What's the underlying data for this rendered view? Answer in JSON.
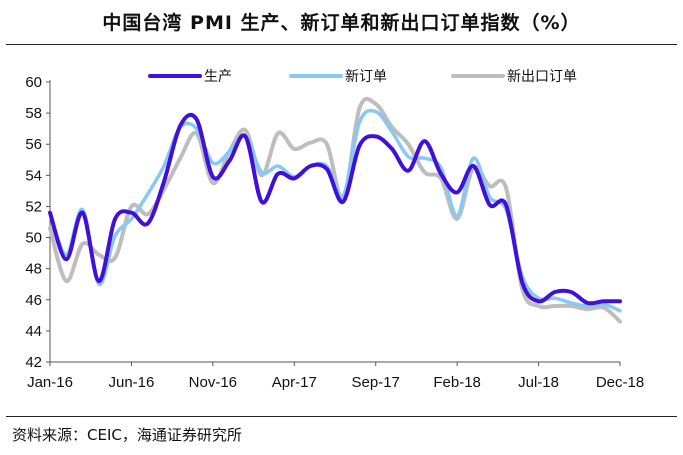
{
  "title": "中国台湾 PMI 生产、新订单和新出口订单指数（%）",
  "source": "资料来源：CEIC，海通证券研究所",
  "chart_data": {
    "type": "line",
    "x": [
      "2016-01",
      "2016-02",
      "2016-03",
      "2016-04",
      "2016-05",
      "2016-06",
      "2016-07",
      "2016-08",
      "2016-09",
      "2016-10",
      "2016-11",
      "2016-12",
      "2017-01",
      "2017-02",
      "2017-03",
      "2017-04",
      "2017-05",
      "2017-06",
      "2017-07",
      "2017-08",
      "2017-09",
      "2017-10",
      "2017-11",
      "2017-12",
      "2018-01",
      "2018-02",
      "2018-03",
      "2018-04",
      "2018-05",
      "2018-06",
      "2018-07",
      "2018-08",
      "2018-09",
      "2018-10",
      "2018-11",
      "2018-12"
    ],
    "xticks": [
      "Jan-16",
      "Jun-16",
      "Nov-16",
      "Apr-17",
      "Sep-17",
      "Feb-18",
      "Jul-18",
      "Dec-18"
    ],
    "ylim": [
      42,
      60
    ],
    "yticks": [
      42,
      44,
      46,
      48,
      50,
      52,
      54,
      56,
      58,
      60
    ],
    "legend_position": "top",
    "series": [
      {
        "name": "生产",
        "color": "#4010d8",
        "values": [
          51.6,
          48.6,
          51.6,
          47.2,
          51.2,
          51.6,
          50.9,
          53.6,
          57.2,
          57.6,
          53.9,
          54.9,
          56.5,
          52.3,
          54.1,
          53.8,
          54.6,
          54.4,
          52.3,
          55.9,
          56.5,
          55.7,
          54.3,
          56.2,
          54.1,
          52.9,
          54.6,
          52.1,
          52.1,
          47.1,
          45.9,
          46.5,
          46.5,
          45.8,
          45.9,
          45.9
        ]
      },
      {
        "name": "新订单",
        "color": "#88c8f5",
        "values": [
          51.6,
          48.9,
          51.8,
          47.0,
          50.1,
          51.2,
          52.8,
          54.6,
          57.1,
          57.0,
          54.8,
          55.5,
          56.5,
          54.2,
          54.6,
          53.9,
          54.6,
          54.6,
          52.7,
          57.4,
          58.1,
          56.8,
          55.2,
          55.1,
          54.5,
          51.4,
          55.1,
          52.6,
          51.8,
          47.5,
          46.1,
          46.1,
          45.8,
          45.6,
          45.7,
          45.3
        ]
      },
      {
        "name": "新出口订单",
        "color": "#bdbdbd",
        "values": [
          50.6,
          47.2,
          49.6,
          48.9,
          48.7,
          52.0,
          51.5,
          53.1,
          55.1,
          56.7,
          53.5,
          55.5,
          56.9,
          54.0,
          56.7,
          55.7,
          56.1,
          56.0,
          52.5,
          58.3,
          58.6,
          57.1,
          56.0,
          54.2,
          53.8,
          51.2,
          54.5,
          53.3,
          53.2,
          46.7,
          45.6,
          45.6,
          45.6,
          45.4,
          45.5,
          44.6
        ]
      }
    ]
  }
}
